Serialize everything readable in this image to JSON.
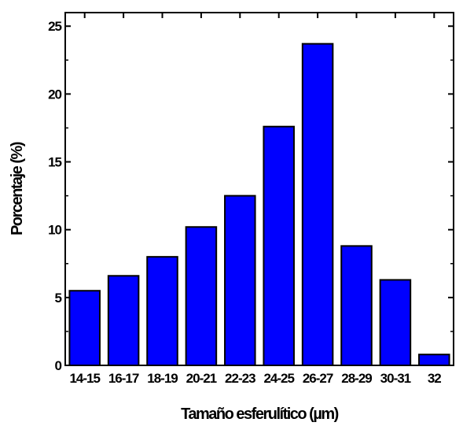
{
  "chart_data": {
    "type": "bar",
    "title": "",
    "xlabel": "Tamaño esferulítico (µm)",
    "ylabel": "Porcentaje (%)",
    "categories": [
      "14-15",
      "16-17",
      "18-19",
      "20-21",
      "22-23",
      "24-25",
      "26-27",
      "28-29",
      "30-31",
      "32"
    ],
    "values": [
      5.5,
      6.6,
      8.0,
      10.2,
      12.5,
      17.6,
      23.7,
      8.8,
      6.3,
      0.8
    ],
    "ylim": [
      0,
      26
    ],
    "yticks": [
      0,
      5,
      10,
      15,
      20,
      25
    ],
    "grid": false,
    "legend": "none",
    "bar_color": "#0000ff",
    "edge_color": "#000000"
  }
}
